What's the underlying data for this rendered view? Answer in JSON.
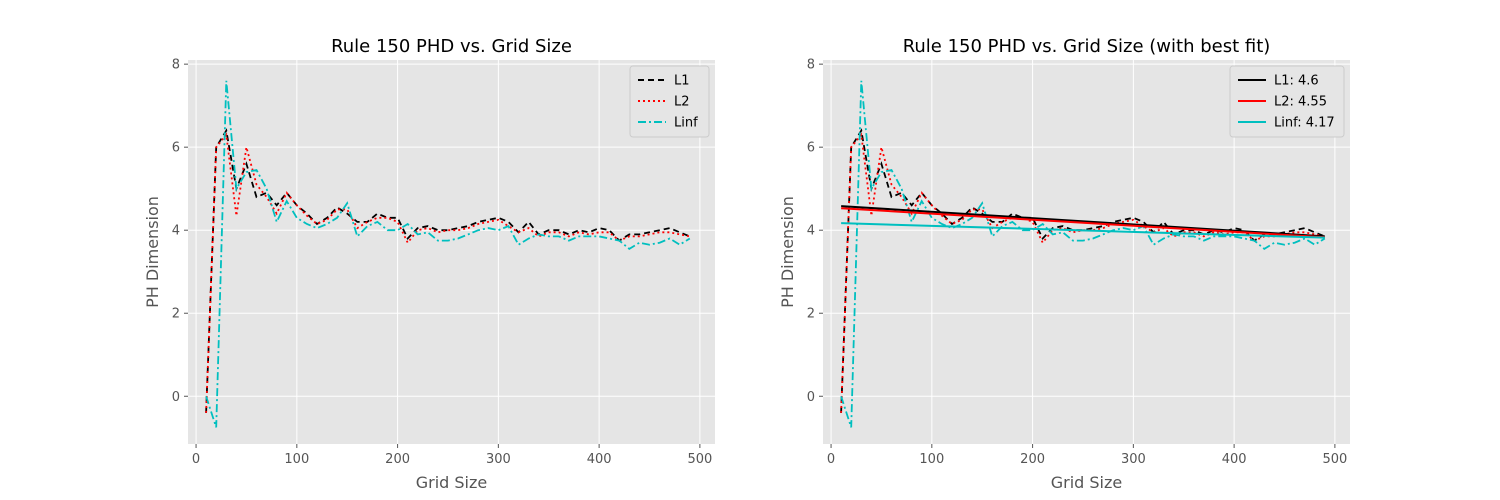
{
  "chart_data": [
    {
      "type": "line",
      "title": "Rule 150 PHD vs. Grid Size",
      "xlabel": "Grid Size",
      "ylabel": "PH Dimension",
      "xlim": [
        -8,
        515
      ],
      "ylim": [
        -1.15,
        8.1
      ],
      "xticks": [
        "0",
        "100",
        "200",
        "300",
        "400",
        "500"
      ],
      "yticks": [
        "0",
        "2",
        "4",
        "6",
        "8"
      ],
      "grid": true,
      "legend": "top-right",
      "x": [
        10,
        20,
        30,
        40,
        50,
        60,
        70,
        80,
        90,
        100,
        110,
        120,
        130,
        140,
        150,
        160,
        170,
        180,
        190,
        200,
        210,
        220,
        230,
        240,
        250,
        260,
        270,
        280,
        290,
        300,
        310,
        320,
        330,
        340,
        350,
        360,
        370,
        380,
        390,
        400,
        410,
        420,
        430,
        440,
        450,
        460,
        470,
        480,
        490
      ],
      "series": [
        {
          "name": "L1",
          "color": "#000000",
          "dash": "dashed",
          "values": [
            -0.4,
            6.0,
            6.4,
            5.0,
            5.6,
            4.8,
            4.9,
            4.6,
            4.9,
            4.6,
            4.4,
            4.15,
            4.3,
            4.55,
            4.4,
            4.2,
            4.2,
            4.4,
            4.3,
            4.3,
            3.8,
            4.05,
            4.1,
            4.0,
            4.0,
            4.05,
            4.1,
            4.2,
            4.25,
            4.3,
            4.2,
            3.95,
            4.2,
            3.9,
            4.0,
            4.0,
            3.9,
            4.0,
            3.95,
            4.05,
            4.0,
            3.75,
            3.9,
            3.9,
            3.95,
            4.0,
            4.05,
            3.95,
            3.85
          ]
        },
        {
          "name": "L2",
          "color": "#ff0000",
          "dash": "dotted",
          "values": [
            -0.4,
            6.0,
            6.3,
            4.35,
            6.0,
            5.1,
            4.8,
            4.4,
            4.9,
            4.6,
            4.35,
            4.15,
            4.25,
            4.5,
            4.5,
            4.05,
            4.2,
            4.3,
            4.3,
            4.2,
            3.7,
            4.0,
            4.05,
            3.95,
            4.0,
            4.0,
            4.05,
            4.15,
            4.2,
            4.25,
            4.1,
            3.95,
            4.05,
            3.85,
            3.95,
            3.95,
            3.85,
            3.95,
            3.9,
            3.95,
            3.95,
            3.75,
            3.85,
            3.85,
            3.9,
            3.95,
            3.95,
            3.9,
            3.85
          ]
        },
        {
          "name": "Linf",
          "color": "#00bfbf",
          "dash": "dashdot",
          "values": [
            0.0,
            -0.75,
            7.6,
            5.0,
            5.4,
            5.45,
            5.0,
            4.2,
            4.7,
            4.3,
            4.15,
            4.05,
            4.15,
            4.3,
            4.65,
            3.85,
            4.1,
            4.2,
            4.0,
            4.0,
            4.15,
            3.9,
            3.95,
            3.75,
            3.75,
            3.8,
            3.9,
            4.0,
            4.05,
            4.0,
            4.1,
            3.65,
            3.8,
            3.9,
            3.85,
            3.85,
            3.75,
            3.85,
            3.85,
            3.85,
            3.8,
            3.75,
            3.55,
            3.7,
            3.65,
            3.7,
            3.8,
            3.65,
            3.8
          ]
        }
      ]
    },
    {
      "type": "line",
      "title": "Rule 150 PHD vs. Grid Size (with best fit)",
      "xlabel": "Grid Size",
      "ylabel": "PH Dimension",
      "xlim": [
        -8,
        515
      ],
      "ylim": [
        -1.15,
        8.1
      ],
      "xticks": [
        "0",
        "100",
        "200",
        "300",
        "400",
        "500"
      ],
      "yticks": [
        "0",
        "2",
        "4",
        "6",
        "8"
      ],
      "grid": true,
      "legend": "top-right",
      "x": [
        10,
        20,
        30,
        40,
        50,
        60,
        70,
        80,
        90,
        100,
        110,
        120,
        130,
        140,
        150,
        160,
        170,
        180,
        190,
        200,
        210,
        220,
        230,
        240,
        250,
        260,
        270,
        280,
        290,
        300,
        310,
        320,
        330,
        340,
        350,
        360,
        370,
        380,
        390,
        400,
        410,
        420,
        430,
        440,
        450,
        460,
        470,
        480,
        490
      ],
      "series": [
        {
          "name": "L1",
          "color": "#000000",
          "dash": "dashed",
          "values": [
            -0.4,
            6.0,
            6.4,
            5.0,
            5.6,
            4.8,
            4.9,
            4.6,
            4.9,
            4.6,
            4.4,
            4.15,
            4.3,
            4.55,
            4.4,
            4.2,
            4.2,
            4.4,
            4.3,
            4.3,
            3.8,
            4.05,
            4.1,
            4.0,
            4.0,
            4.05,
            4.1,
            4.2,
            4.25,
            4.3,
            4.2,
            3.95,
            4.2,
            3.9,
            4.0,
            4.0,
            3.9,
            4.0,
            3.95,
            4.05,
            4.0,
            3.75,
            3.9,
            3.9,
            3.95,
            4.0,
            4.05,
            3.95,
            3.85
          ]
        },
        {
          "name": "L2",
          "color": "#ff0000",
          "dash": "dotted",
          "values": [
            -0.4,
            6.0,
            6.3,
            4.35,
            6.0,
            5.1,
            4.8,
            4.4,
            4.9,
            4.6,
            4.35,
            4.15,
            4.25,
            4.5,
            4.5,
            4.05,
            4.2,
            4.3,
            4.3,
            4.2,
            3.7,
            4.0,
            4.05,
            3.95,
            4.0,
            4.0,
            4.05,
            4.15,
            4.2,
            4.25,
            4.1,
            3.95,
            4.05,
            3.85,
            3.95,
            3.95,
            3.85,
            3.95,
            3.9,
            3.95,
            3.95,
            3.75,
            3.85,
            3.85,
            3.9,
            3.95,
            3.95,
            3.9,
            3.85
          ]
        },
        {
          "name": "Linf",
          "color": "#00bfbf",
          "dash": "dashdot",
          "values": [
            0.0,
            -0.75,
            7.6,
            5.0,
            5.4,
            5.45,
            5.0,
            4.2,
            4.7,
            4.3,
            4.15,
            4.05,
            4.15,
            4.3,
            4.65,
            3.85,
            4.1,
            4.2,
            4.0,
            4.0,
            4.15,
            3.9,
            3.95,
            3.75,
            3.75,
            3.8,
            3.9,
            4.0,
            4.05,
            4.0,
            4.1,
            3.65,
            3.8,
            3.9,
            3.85,
            3.85,
            3.75,
            3.85,
            3.85,
            3.85,
            3.8,
            3.75,
            3.55,
            3.7,
            3.65,
            3.7,
            3.8,
            3.65,
            3.8
          ]
        }
      ],
      "fits": [
        {
          "name": "L1: 4.6",
          "color": "#000000",
          "x": [
            10,
            490
          ],
          "values": [
            4.58,
            3.85
          ]
        },
        {
          "name": "L2: 4.55",
          "color": "#ff0000",
          "x": [
            10,
            490
          ],
          "values": [
            4.53,
            3.83
          ]
        },
        {
          "name": "Linf: 4.17",
          "color": "#00bfbf",
          "x": [
            10,
            490
          ],
          "values": [
            4.17,
            3.82
          ]
        }
      ]
    }
  ]
}
